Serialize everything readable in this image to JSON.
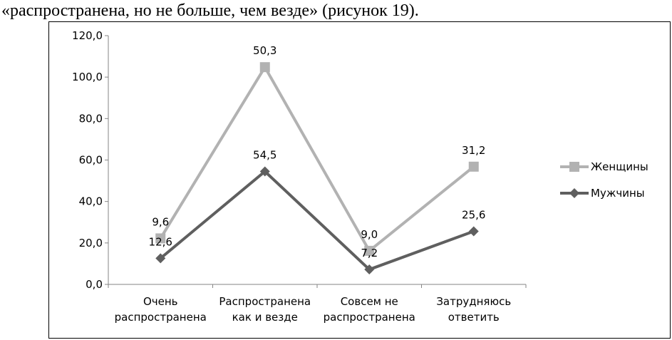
{
  "caption": "«распространена, но не больше, чем везде» (рисунок 19).",
  "chart_data": {
    "type": "line",
    "stacked": true,
    "categories": [
      [
        "Очень",
        "распространена"
      ],
      [
        "Распространена",
        "как и везде"
      ],
      [
        "Совсем не",
        "распространена"
      ],
      [
        "Затрудняюсь",
        "ответить"
      ]
    ],
    "ylim": [
      0,
      120
    ],
    "yticks": [
      "0,0",
      "20,0",
      "40,0",
      "60,0",
      "80,0",
      "100,0",
      "120,0"
    ],
    "grid": false,
    "legend_position": "right",
    "series": [
      {
        "name": "Мужчины",
        "values": [
          12.6,
          54.5,
          7.2,
          25.6
        ],
        "labels": [
          "12,6",
          "54,5",
          "7,2",
          "25,6"
        ],
        "color": "#5f5f5f",
        "marker": "diamond"
      },
      {
        "name": "Женщины",
        "values": [
          9.6,
          50.3,
          9.0,
          31.2
        ],
        "labels": [
          "9,6",
          "50,3",
          "9,0",
          "31,2"
        ],
        "color": "#b2b2b2",
        "marker": "square"
      }
    ]
  }
}
